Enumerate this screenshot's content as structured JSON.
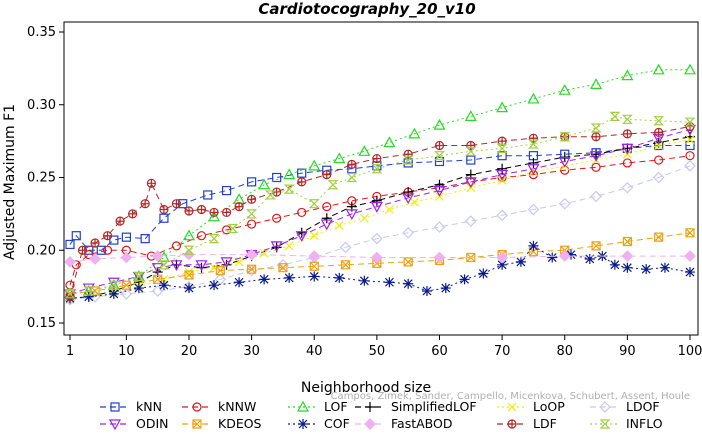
{
  "chart_data": {
    "type": "line",
    "title": "Cardiotocography_20_v10",
    "xlabel": "Neighborhood size",
    "ylabel": "Adjusted Maximum F1",
    "xlim": [
      1,
      100
    ],
    "ylim": [
      0.15,
      0.35
    ],
    "x_ticks": [
      "1",
      "10",
      "20",
      "30",
      "40",
      "50",
      "60",
      "70",
      "80",
      "90",
      "100"
    ],
    "y_ticks": [
      "0.15",
      "0.20",
      "0.25",
      "0.30",
      "0.35"
    ],
    "grid": false,
    "legend_position": "bottom",
    "series": [
      {
        "name": "kNN",
        "color": "#1f3fd6",
        "marker": "square",
        "dash": "6,4",
        "points": [
          [
            1,
            0.204
          ],
          [
            2,
            0.21
          ],
          [
            4,
            0.2
          ],
          [
            6,
            0.2
          ],
          [
            8,
            0.207
          ],
          [
            10,
            0.209
          ],
          [
            13,
            0.208
          ],
          [
            16,
            0.222
          ],
          [
            19,
            0.232
          ],
          [
            23,
            0.238
          ],
          [
            26,
            0.241
          ],
          [
            30,
            0.247
          ],
          [
            34,
            0.25
          ],
          [
            38,
            0.253
          ],
          [
            42,
            0.255
          ],
          [
            46,
            0.256
          ],
          [
            50,
            0.258
          ],
          [
            55,
            0.26
          ],
          [
            60,
            0.261
          ],
          [
            65,
            0.262
          ],
          [
            70,
            0.265
          ],
          [
            75,
            0.265
          ],
          [
            80,
            0.266
          ],
          [
            85,
            0.267
          ],
          [
            90,
            0.27
          ],
          [
            95,
            0.272
          ],
          [
            100,
            0.272
          ]
        ]
      },
      {
        "name": "kNNW",
        "color": "#e01818",
        "marker": "circle",
        "dash": "6,4",
        "points": [
          [
            1,
            0.176
          ],
          [
            2,
            0.19
          ],
          [
            4,
            0.197
          ],
          [
            7,
            0.2
          ],
          [
            10,
            0.2
          ],
          [
            14,
            0.196
          ],
          [
            18,
            0.203
          ],
          [
            22,
            0.21
          ],
          [
            26,
            0.214
          ],
          [
            30,
            0.218
          ],
          [
            34,
            0.222
          ],
          [
            38,
            0.226
          ],
          [
            42,
            0.23
          ],
          [
            46,
            0.234
          ],
          [
            50,
            0.237
          ],
          [
            55,
            0.24
          ],
          [
            60,
            0.243
          ],
          [
            65,
            0.247
          ],
          [
            70,
            0.25
          ],
          [
            75,
            0.252
          ],
          [
            80,
            0.255
          ],
          [
            85,
            0.257
          ],
          [
            90,
            0.26
          ],
          [
            95,
            0.262
          ],
          [
            100,
            0.265
          ]
        ]
      },
      {
        "name": "LOF",
        "color": "#22dd22",
        "marker": "triangle",
        "dash": "2,3",
        "points": [
          [
            1,
            0.17
          ],
          [
            4,
            0.172
          ],
          [
            8,
            0.176
          ],
          [
            12,
            0.182
          ],
          [
            16,
            0.195
          ],
          [
            20,
            0.21
          ],
          [
            24,
            0.223
          ],
          [
            28,
            0.235
          ],
          [
            32,
            0.245
          ],
          [
            36,
            0.252
          ],
          [
            40,
            0.258
          ],
          [
            44,
            0.263
          ],
          [
            48,
            0.268
          ],
          [
            52,
            0.274
          ],
          [
            56,
            0.28
          ],
          [
            60,
            0.286
          ],
          [
            65,
            0.292
          ],
          [
            70,
            0.298
          ],
          [
            75,
            0.304
          ],
          [
            80,
            0.31
          ],
          [
            85,
            0.314
          ],
          [
            90,
            0.32
          ],
          [
            95,
            0.324
          ],
          [
            100,
            0.324
          ]
        ]
      },
      {
        "name": "SimplifiedLOF",
        "color": "#000000",
        "marker": "plus",
        "dash": "6,4",
        "points": [
          [
            1,
            0.167
          ],
          [
            4,
            0.168
          ],
          [
            8,
            0.172
          ],
          [
            12,
            0.178
          ],
          [
            15,
            0.185
          ],
          [
            18,
            0.19
          ],
          [
            22,
            0.188
          ],
          [
            26,
            0.19
          ],
          [
            30,
            0.196
          ],
          [
            34,
            0.202
          ],
          [
            38,
            0.212
          ],
          [
            42,
            0.222
          ],
          [
            46,
            0.23
          ],
          [
            50,
            0.234
          ],
          [
            55,
            0.24
          ],
          [
            60,
            0.245
          ],
          [
            65,
            0.252
          ],
          [
            70,
            0.256
          ],
          [
            75,
            0.26
          ],
          [
            80,
            0.264
          ],
          [
            85,
            0.266
          ],
          [
            90,
            0.27
          ],
          [
            95,
            0.274
          ],
          [
            100,
            0.278
          ]
        ]
      },
      {
        "name": "LoOP",
        "color": "#eeee00",
        "marker": "x",
        "dash": "2,3",
        "points": [
          [
            1,
            0.166
          ],
          [
            4,
            0.168
          ],
          [
            8,
            0.171
          ],
          [
            12,
            0.175
          ],
          [
            16,
            0.18
          ],
          [
            20,
            0.185
          ],
          [
            24,
            0.188
          ],
          [
            28,
            0.192
          ],
          [
            32,
            0.198
          ],
          [
            36,
            0.203
          ],
          [
            40,
            0.21
          ],
          [
            44,
            0.217
          ],
          [
            48,
            0.222
          ],
          [
            52,
            0.228
          ],
          [
            56,
            0.233
          ],
          [
            60,
            0.237
          ],
          [
            65,
            0.243
          ],
          [
            70,
            0.248
          ],
          [
            75,
            0.254
          ],
          [
            80,
            0.258
          ],
          [
            85,
            0.262
          ],
          [
            90,
            0.266
          ],
          [
            95,
            0.272
          ],
          [
            100,
            0.276
          ]
        ]
      },
      {
        "name": "LDOF",
        "color": "#c8c8f0",
        "marker": "diamond",
        "dash": "6,4",
        "points": [
          [
            1,
            0.166
          ],
          [
            5,
            0.168
          ],
          [
            10,
            0.17
          ],
          [
            15,
            0.172
          ],
          [
            20,
            0.175
          ],
          [
            25,
            0.18
          ],
          [
            30,
            0.186
          ],
          [
            35,
            0.19
          ],
          [
            40,
            0.195
          ],
          [
            45,
            0.202
          ],
          [
            50,
            0.208
          ],
          [
            55,
            0.212
          ],
          [
            60,
            0.216
          ],
          [
            65,
            0.22
          ],
          [
            70,
            0.224
          ],
          [
            75,
            0.228
          ],
          [
            80,
            0.232
          ],
          [
            85,
            0.237
          ],
          [
            90,
            0.243
          ],
          [
            95,
            0.25
          ],
          [
            100,
            0.258
          ]
        ]
      },
      {
        "name": "ODIN",
        "color": "#a020f0",
        "marker": "triangle-down",
        "dash": "6,4",
        "points": [
          [
            1,
            0.17
          ],
          [
            4,
            0.174
          ],
          [
            8,
            0.178
          ],
          [
            12,
            0.182
          ],
          [
            15,
            0.188
          ],
          [
            18,
            0.19
          ],
          [
            22,
            0.19
          ],
          [
            26,
            0.192
          ],
          [
            30,
            0.197
          ],
          [
            34,
            0.203
          ],
          [
            38,
            0.21
          ],
          [
            42,
            0.218
          ],
          [
            46,
            0.225
          ],
          [
            50,
            0.23
          ],
          [
            55,
            0.236
          ],
          [
            60,
            0.241
          ],
          [
            65,
            0.247
          ],
          [
            70,
            0.252
          ],
          [
            75,
            0.256
          ],
          [
            80,
            0.261
          ],
          [
            85,
            0.265
          ],
          [
            90,
            0.27
          ],
          [
            95,
            0.277
          ],
          [
            100,
            0.283
          ]
        ]
      },
      {
        "name": "KDEOS",
        "color": "#f0a010",
        "marker": "square-x",
        "dash": "6,4",
        "points": [
          [
            1,
            0.17
          ],
          [
            5,
            0.172
          ],
          [
            10,
            0.176
          ],
          [
            15,
            0.18
          ],
          [
            20,
            0.183
          ],
          [
            25,
            0.186
          ],
          [
            30,
            0.187
          ],
          [
            35,
            0.188
          ],
          [
            40,
            0.189
          ],
          [
            45,
            0.19
          ],
          [
            50,
            0.191
          ],
          [
            55,
            0.192
          ],
          [
            60,
            0.193
          ],
          [
            65,
            0.195
          ],
          [
            70,
            0.197
          ],
          [
            75,
            0.199
          ],
          [
            80,
            0.2
          ],
          [
            85,
            0.203
          ],
          [
            90,
            0.206
          ],
          [
            95,
            0.209
          ],
          [
            100,
            0.212
          ]
        ]
      },
      {
        "name": "COF",
        "color": "#0a1a8a",
        "marker": "asterisk",
        "dash": "2,3",
        "points": [
          [
            1,
            0.167
          ],
          [
            4,
            0.168
          ],
          [
            8,
            0.17
          ],
          [
            12,
            0.174
          ],
          [
            16,
            0.176
          ],
          [
            20,
            0.174
          ],
          [
            24,
            0.176
          ],
          [
            28,
            0.178
          ],
          [
            32,
            0.18
          ],
          [
            36,
            0.181
          ],
          [
            40,
            0.182
          ],
          [
            44,
            0.181
          ],
          [
            48,
            0.179
          ],
          [
            52,
            0.178
          ],
          [
            55,
            0.177
          ],
          [
            58,
            0.172
          ],
          [
            61,
            0.174
          ],
          [
            64,
            0.18
          ],
          [
            67,
            0.184
          ],
          [
            70,
            0.19
          ],
          [
            73,
            0.192
          ],
          [
            75,
            0.203
          ],
          [
            78,
            0.195
          ],
          [
            81,
            0.197
          ],
          [
            84,
            0.194
          ],
          [
            86,
            0.196
          ],
          [
            88,
            0.19
          ],
          [
            90,
            0.188
          ],
          [
            93,
            0.187
          ],
          [
            96,
            0.188
          ],
          [
            100,
            0.185
          ]
        ]
      },
      {
        "name": "FastABOD",
        "color": "#f0b0f0",
        "marker": "diamond-filled",
        "dash": "6,4",
        "points": [
          [
            1,
            0.192
          ],
          [
            5,
            0.194
          ],
          [
            10,
            0.195
          ],
          [
            15,
            0.196
          ],
          [
            20,
            0.197
          ],
          [
            30,
            0.197
          ],
          [
            40,
            0.196
          ],
          [
            50,
            0.195
          ],
          [
            60,
            0.195
          ],
          [
            70,
            0.195
          ],
          [
            80,
            0.196
          ],
          [
            90,
            0.196
          ],
          [
            100,
            0.196
          ]
        ]
      },
      {
        "name": "LDF",
        "color": "#b02828",
        "marker": "circle-plus",
        "dash": "6,4",
        "points": [
          [
            1,
            0.168
          ],
          [
            3,
            0.2
          ],
          [
            5,
            0.205
          ],
          [
            7,
            0.21
          ],
          [
            9,
            0.22
          ],
          [
            11,
            0.225
          ],
          [
            13,
            0.232
          ],
          [
            14,
            0.246
          ],
          [
            16,
            0.228
          ],
          [
            18,
            0.232
          ],
          [
            20,
            0.227
          ],
          [
            22,
            0.228
          ],
          [
            24,
            0.226
          ],
          [
            26,
            0.226
          ],
          [
            28,
            0.23
          ],
          [
            30,
            0.235
          ],
          [
            34,
            0.24
          ],
          [
            38,
            0.247
          ],
          [
            42,
            0.252
          ],
          [
            46,
            0.259
          ],
          [
            50,
            0.263
          ],
          [
            55,
            0.266
          ],
          [
            60,
            0.272
          ],
          [
            65,
            0.272
          ],
          [
            70,
            0.275
          ],
          [
            75,
            0.277
          ],
          [
            80,
            0.278
          ],
          [
            85,
            0.278
          ],
          [
            90,
            0.28
          ],
          [
            95,
            0.281
          ],
          [
            100,
            0.285
          ]
        ]
      },
      {
        "name": "INFLO",
        "color": "#a0d040",
        "marker": "hourglass",
        "dash": "2,3",
        "points": [
          [
            1,
            0.17
          ],
          [
            4,
            0.172
          ],
          [
            8,
            0.176
          ],
          [
            12,
            0.182
          ],
          [
            16,
            0.19
          ],
          [
            20,
            0.2
          ],
          [
            24,
            0.208
          ],
          [
            27,
            0.215
          ],
          [
            30,
            0.225
          ],
          [
            33,
            0.238
          ],
          [
            36,
            0.242
          ],
          [
            40,
            0.232
          ],
          [
            43,
            0.245
          ],
          [
            46,
            0.25
          ],
          [
            50,
            0.256
          ],
          [
            55,
            0.262
          ],
          [
            60,
            0.265
          ],
          [
            65,
            0.268
          ],
          [
            70,
            0.27
          ],
          [
            75,
            0.273
          ],
          [
            80,
            0.278
          ],
          [
            85,
            0.284
          ],
          [
            88,
            0.292
          ],
          [
            90,
            0.29
          ],
          [
            95,
            0.289
          ],
          [
            100,
            0.288
          ]
        ]
      }
    ]
  },
  "watermark": "Campos, Zimek, Sander, Campello, Micenkova, Schubert, Assent, Houle"
}
